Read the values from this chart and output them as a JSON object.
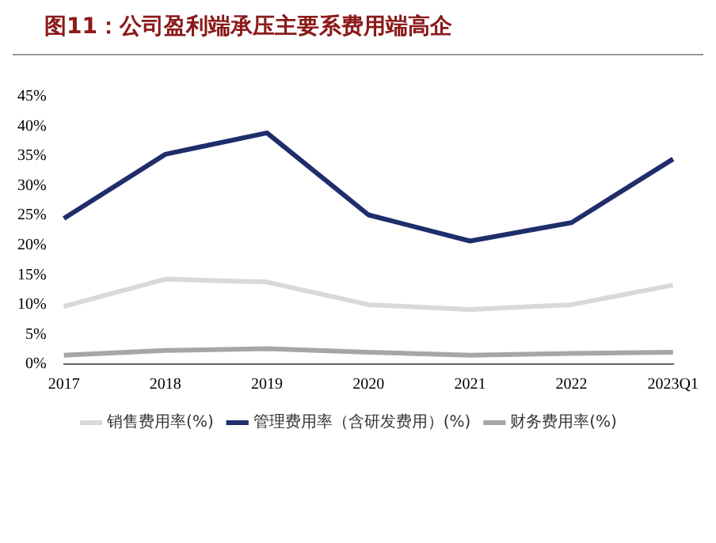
{
  "chart_data": {
    "type": "line",
    "title": "图11：公司盈利端承压主要系费用端高企",
    "categories": [
      "2017",
      "2018",
      "2019",
      "2020",
      "2021",
      "2022",
      "2023Q1"
    ],
    "series": [
      {
        "name": "销售费用率(%)",
        "color": "#d9d9d9",
        "values": [
          9.7,
          14.3,
          13.8,
          10.0,
          9.2,
          10.0,
          13.3
        ]
      },
      {
        "name": "管理费用率（含研发费用）(%)",
        "color": "#1f2d6b",
        "values": [
          24.5,
          35.3,
          38.9,
          25.1,
          20.7,
          23.8,
          34.5
        ]
      },
      {
        "name": "财务费用率(%)",
        "color": "#a6a6a6",
        "values": [
          1.5,
          2.3,
          2.6,
          2.0,
          1.5,
          1.8,
          2.0
        ]
      }
    ],
    "ylim": [
      0,
      45
    ],
    "yticks": [
      {
        "value": 0,
        "label": "0%"
      },
      {
        "value": 5,
        "label": "5%"
      },
      {
        "value": 10,
        "label": "10%"
      },
      {
        "value": 15,
        "label": "15%"
      },
      {
        "value": 20,
        "label": "20%"
      },
      {
        "value": 25,
        "label": "25%"
      },
      {
        "value": 30,
        "label": "30%"
      },
      {
        "value": 35,
        "label": "35%"
      },
      {
        "value": 40,
        "label": "40%"
      },
      {
        "value": 45,
        "label": "45%"
      }
    ],
    "grid": false,
    "legend": "bottom",
    "marker": "none",
    "line_style": "solid"
  }
}
